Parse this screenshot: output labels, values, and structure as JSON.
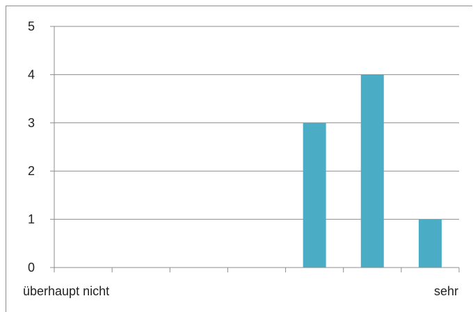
{
  "chart_data": {
    "type": "bar",
    "categories": [
      "überhaupt nicht",
      "",
      "",
      "",
      "",
      "",
      "sehr"
    ],
    "values": [
      0,
      0,
      0,
      0,
      3,
      4,
      1
    ],
    "ylim": [
      0,
      5
    ],
    "yticks": [
      0,
      1,
      2,
      3,
      4,
      5
    ],
    "grid": true,
    "bar_color": "#4bacc6",
    "title": "",
    "xlabel": "",
    "ylabel": ""
  }
}
